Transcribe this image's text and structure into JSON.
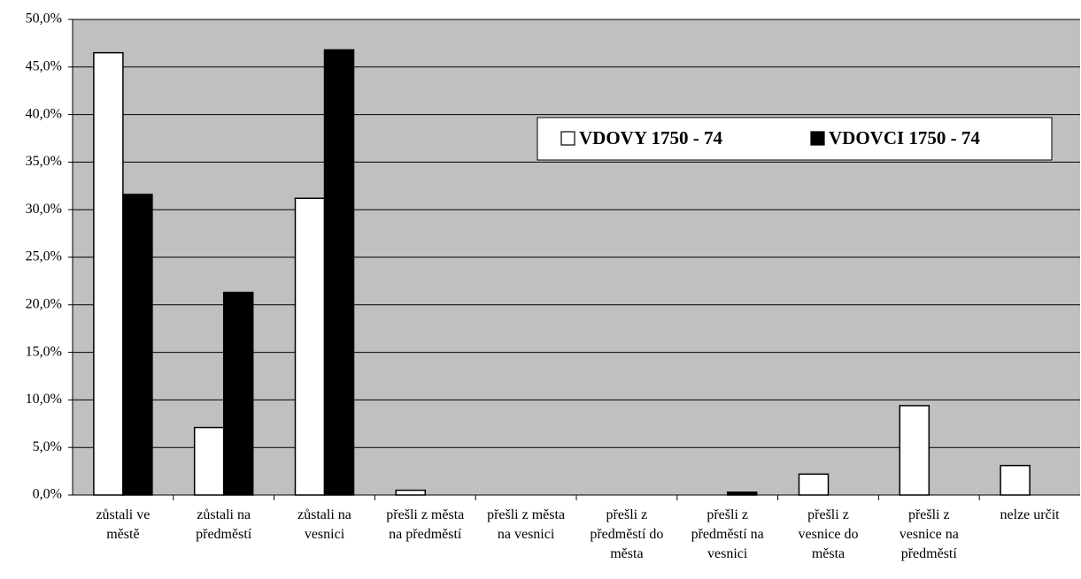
{
  "chart_data": {
    "type": "bar",
    "categories": [
      "zůstali ve městě",
      "zůstali na předměstí",
      "zůstali na vesnici",
      "přešli z města na předměstí",
      "přešli z města na vesnici",
      "přešli z předměstí do města",
      "přešli z předměstí na vesnici",
      "přešli z vesnice do města",
      "přešli z vesnice na předměstí",
      "nelze určit"
    ],
    "series": [
      {
        "name": "VDOVY 1750 - 74",
        "color": "#ffffff",
        "values": [
          46.5,
          7.1,
          31.2,
          0.5,
          0,
          0,
          0,
          2.2,
          9.4,
          3.1
        ]
      },
      {
        "name": "VDOVCI 1750 - 74",
        "color": "#000000",
        "values": [
          31.6,
          21.3,
          46.8,
          0,
          0,
          0,
          0.3,
          0,
          0,
          0
        ]
      }
    ],
    "ylim": [
      0,
      50
    ],
    "yticks": [
      {
        "value": 0,
        "label": "0,0%"
      },
      {
        "value": 5,
        "label": "5,0%"
      },
      {
        "value": 10,
        "label": "10,0%"
      },
      {
        "value": 15,
        "label": "15,0%"
      },
      {
        "value": 20,
        "label": "20,0%"
      },
      {
        "value": 25,
        "label": "25,0%"
      },
      {
        "value": 30,
        "label": "30,0%"
      },
      {
        "value": 35,
        "label": "35,0%"
      },
      {
        "value": 40,
        "label": "40,0%"
      },
      {
        "value": 45,
        "label": "45,0%"
      },
      {
        "value": 50,
        "label": "50,0%"
      }
    ],
    "grid": true,
    "plot_background": "#c0c0c0",
    "legend": "upper right"
  }
}
